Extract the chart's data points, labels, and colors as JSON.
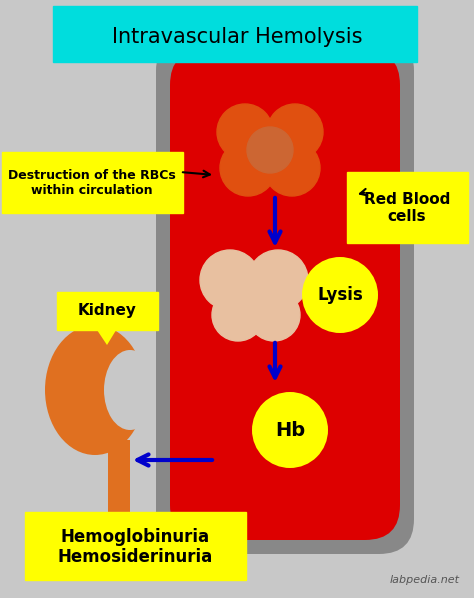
{
  "title": "Intravascular Hemolysis",
  "title_bg": "#00DDDD",
  "background_color": "#C8C8C8",
  "label_rbc": "Red Blood\ncells",
  "label_lysis": "Lysis",
  "label_hb": "Hb",
  "label_kidney": "Kidney",
  "label_destruction": "Destruction of the RBCs\nwithin circulation",
  "label_hemoglobin": "Hemoglobinuria\nHemosiderinuria",
  "label_watermark": "labpedia.net",
  "vessel_outer_color": "#888888",
  "vessel_inner_color": "#DD0000",
  "rbc_dark_color": "#E05010",
  "rbc_dark_color2": "#CC6633",
  "rbc_light_color": "#E8C0A0",
  "hb_color": "#FFFF00",
  "lysis_color": "#FFFF00",
  "kidney_color": "#E07020",
  "arrow_color": "#0000CC",
  "label_bg_yellow": "#FFFF00",
  "label_text_color": "#000000"
}
